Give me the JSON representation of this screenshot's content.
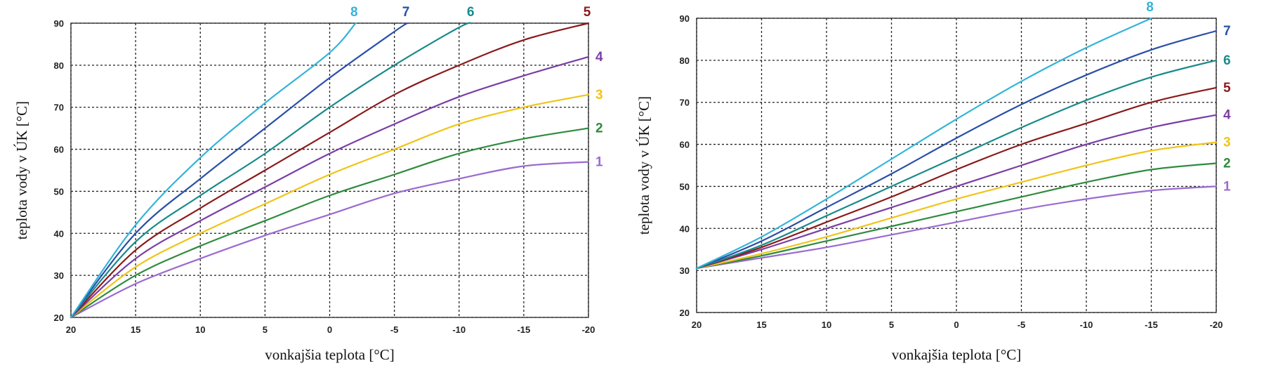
{
  "chart_data": [
    {
      "type": "line",
      "title": "",
      "xlabel": "vonkajšia teplota [°C]",
      "ylabel": "teplota vody v ÚK [°C]",
      "xlim": [
        20,
        -20
      ],
      "ylim": [
        20,
        90
      ],
      "xticks": [
        20,
        15,
        10,
        5,
        0,
        -5,
        -10,
        -15,
        -20
      ],
      "yticks": [
        20,
        30,
        40,
        50,
        60,
        70,
        80,
        90
      ],
      "xtick_labels": [
        "20",
        "15",
        "10",
        "5",
        "0",
        "-5",
        "-10",
        "-15",
        "-20"
      ],
      "ytick_labels": [
        "20",
        "30",
        "40",
        "50",
        "60",
        "70",
        "80",
        "90"
      ],
      "grid": true,
      "series": [
        {
          "name": "1",
          "color": "#9a6bd0",
          "x": [
            20,
            15,
            10,
            5,
            0,
            -5,
            -10,
            -15,
            -20
          ],
          "y": [
            20,
            28,
            34,
            39.5,
            44.5,
            49.5,
            53,
            56,
            57
          ]
        },
        {
          "name": "2",
          "color": "#2e8b3e",
          "x": [
            20,
            15,
            10,
            5,
            0,
            -5,
            -10,
            -15,
            -20
          ],
          "y": [
            20,
            30,
            37,
            43,
            49,
            54,
            59,
            62.5,
            65
          ]
        },
        {
          "name": "3",
          "color": "#f0c419",
          "x": [
            20,
            15,
            10,
            5,
            0,
            -5,
            -10,
            -15,
            -20
          ],
          "y": [
            20,
            32,
            40,
            47,
            54,
            60,
            66,
            70,
            73
          ]
        },
        {
          "name": "4",
          "color": "#7a3ea6",
          "x": [
            20,
            15,
            10,
            5,
            0,
            -5,
            -10,
            -15,
            -20
          ],
          "y": [
            20,
            34,
            43,
            51,
            59,
            66,
            72.5,
            77.5,
            82
          ]
        },
        {
          "name": "5",
          "color": "#8b1a1a",
          "x": [
            20,
            15,
            10,
            5,
            0,
            -5,
            -10,
            -15,
            -20
          ],
          "y": [
            20,
            36,
            46,
            55,
            64,
            73,
            80,
            86,
            90
          ]
        },
        {
          "name": "6",
          "color": "#1a8a8a",
          "x": [
            20,
            15,
            10,
            5,
            0,
            -5,
            -10,
            -11
          ],
          "y": [
            20,
            38,
            49,
            59,
            70,
            80,
            89,
            90
          ]
        },
        {
          "name": "7",
          "color": "#2a4fa8",
          "x": [
            20,
            15,
            10,
            5,
            0,
            -5,
            -6
          ],
          "y": [
            20,
            40,
            53,
            65,
            77,
            88,
            90
          ]
        },
        {
          "name": "8",
          "color": "#32b4d8",
          "x": [
            20,
            15,
            10,
            5,
            0,
            -2
          ],
          "y": [
            20,
            42,
            58,
            71,
            83,
            90
          ]
        }
      ]
    },
    {
      "type": "line",
      "title": "",
      "xlabel": "vonkajšia teplota [°C]",
      "ylabel": "teplota vody v ÚK [°C]",
      "xlim": [
        20,
        -20
      ],
      "ylim": [
        20,
        90
      ],
      "xticks": [
        20,
        15,
        10,
        5,
        0,
        -5,
        -10,
        -15,
        -20
      ],
      "yticks": [
        20,
        30,
        40,
        50,
        60,
        70,
        80,
        90
      ],
      "xtick_labels": [
        "20",
        "15",
        "10",
        "5",
        "0",
        "-5",
        "-10",
        "-15",
        "-20"
      ],
      "ytick_labels": [
        "20",
        "30",
        "40",
        "50",
        "60",
        "70",
        "80",
        "90"
      ],
      "grid": true,
      "series": [
        {
          "name": "1",
          "color": "#9a6bd0",
          "x": [
            20,
            15,
            10,
            5,
            0,
            -5,
            -10,
            -15,
            -20
          ],
          "y": [
            30.5,
            33,
            35.5,
            38.5,
            41.5,
            44.5,
            47,
            49,
            50
          ]
        },
        {
          "name": "2",
          "color": "#2e8b3e",
          "x": [
            20,
            15,
            10,
            5,
            0,
            -5,
            -10,
            -15,
            -20
          ],
          "y": [
            30.5,
            33.5,
            37,
            40.5,
            44,
            47.5,
            51,
            54,
            55.5
          ]
        },
        {
          "name": "3",
          "color": "#f0c419",
          "x": [
            20,
            15,
            10,
            5,
            0,
            -5,
            -10,
            -15,
            -20
          ],
          "y": [
            30.5,
            34,
            38,
            42.5,
            47,
            51,
            55,
            58.5,
            60.5
          ]
        },
        {
          "name": "4",
          "color": "#7a3ea6",
          "x": [
            20,
            15,
            10,
            5,
            0,
            -5,
            -10,
            -15,
            -20
          ],
          "y": [
            30.5,
            35,
            40,
            45,
            50,
            55,
            60,
            64,
            67
          ]
        },
        {
          "name": "5",
          "color": "#8b1a1a",
          "x": [
            20,
            15,
            10,
            5,
            0,
            -5,
            -10,
            -15,
            -20
          ],
          "y": [
            30.5,
            35.5,
            41.5,
            47.5,
            54,
            60,
            65,
            70,
            73.5
          ]
        },
        {
          "name": "6",
          "color": "#1a8a8a",
          "x": [
            20,
            15,
            10,
            5,
            0,
            -5,
            -10,
            -15,
            -20
          ],
          "y": [
            30.5,
            36,
            43,
            50,
            57,
            64,
            70.5,
            76,
            80
          ]
        },
        {
          "name": "7",
          "color": "#2a4fa8",
          "x": [
            20,
            15,
            10,
            5,
            0,
            -5,
            -10,
            -15,
            -20
          ],
          "y": [
            30.5,
            37,
            45,
            53,
            61.5,
            69.5,
            76.5,
            82.5,
            87
          ]
        },
        {
          "name": "8",
          "color": "#32b4d8",
          "x": [
            20,
            15,
            10,
            5,
            0,
            -5,
            -10,
            -15
          ],
          "y": [
            30.5,
            38,
            47,
            56.5,
            66,
            75,
            83,
            90
          ]
        }
      ]
    }
  ]
}
